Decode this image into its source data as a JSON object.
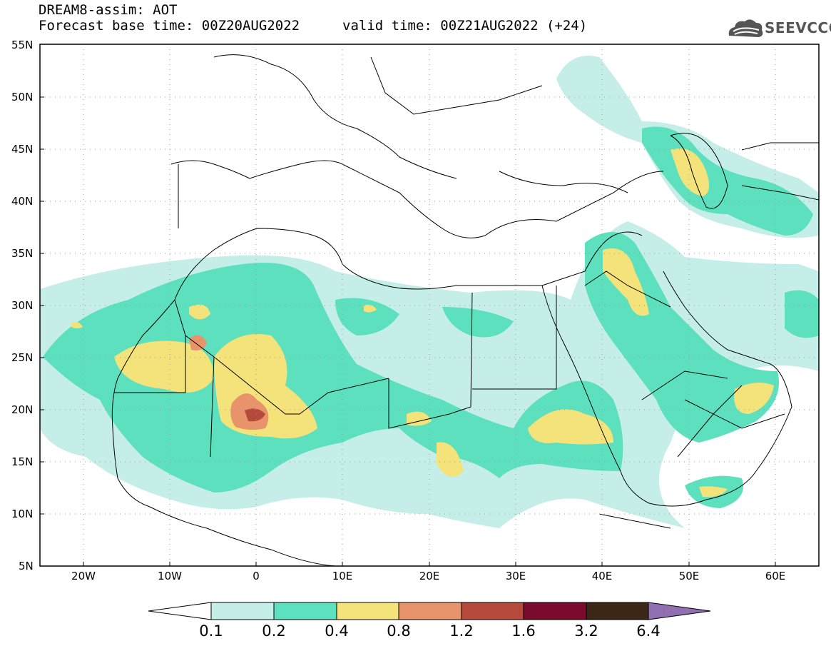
{
  "header": {
    "title_line1": "DREAM8-assim: AOT",
    "title_line2": "Forecast base time: 00Z20AUG2022",
    "valid_time": "valid time: 00Z21AUG2022 (+24)",
    "logo_text": "SEEVCCC"
  },
  "map": {
    "variable": "AOT",
    "lon_range": [
      -25,
      65
    ],
    "lat_range": [
      5,
      55
    ],
    "lat_labels": [
      "55N",
      "50N",
      "45N",
      "40N",
      "35N",
      "30N",
      "25N",
      "20N",
      "15N",
      "10N",
      "5N"
    ],
    "lon_labels": [
      "20W",
      "10W",
      "0",
      "10E",
      "20E",
      "30E",
      "40E",
      "50E",
      "60E"
    ]
  },
  "colorbar": {
    "labels": [
      "0.1",
      "0.2",
      "0.4",
      "0.8",
      "1.2",
      "1.6",
      "3.2",
      "6.4"
    ],
    "colors": [
      "#ffffff",
      "#c6eee8",
      "#5de0be",
      "#f4e27a",
      "#e8936a",
      "#b54a3c",
      "#7a0b2c",
      "#3c2616",
      "#9070b0"
    ]
  }
}
